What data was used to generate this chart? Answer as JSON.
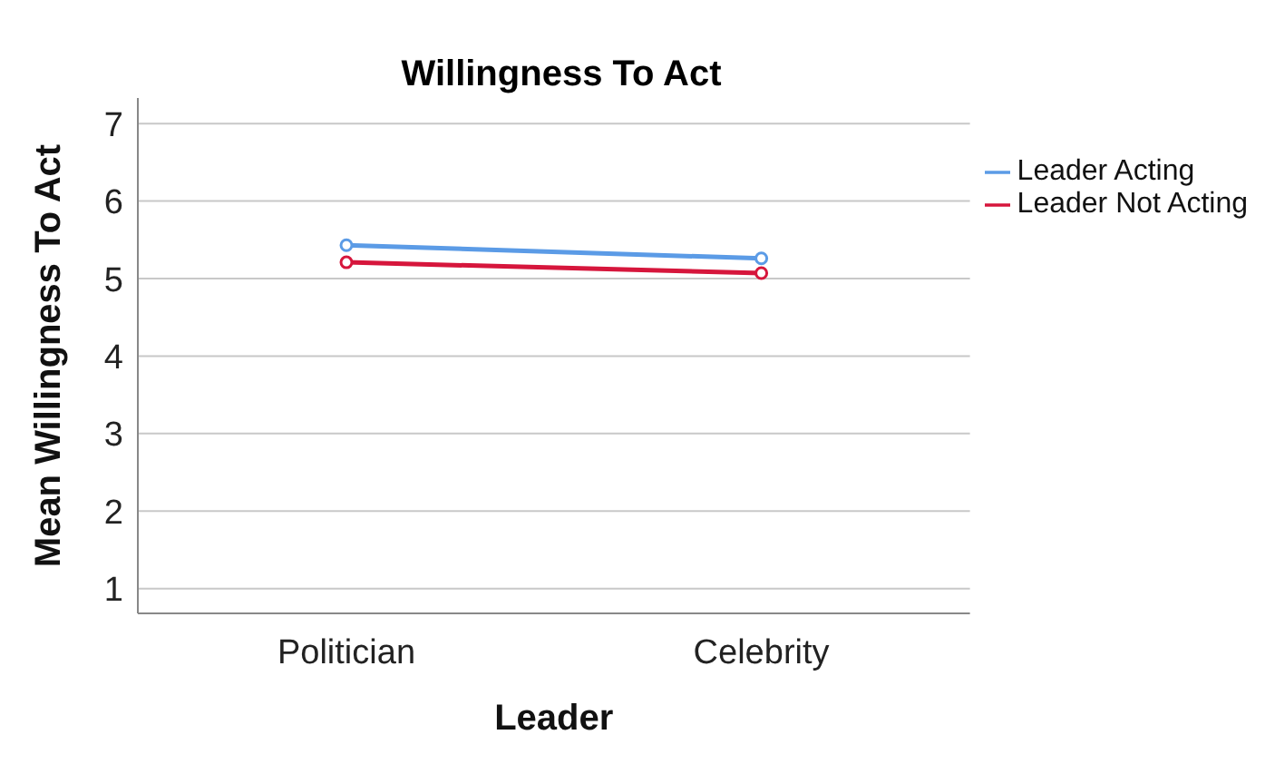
{
  "chart_data": {
    "type": "line",
    "title": "Willingness To Act",
    "xlabel": "Leader",
    "ylabel": "Mean Willingness To Act",
    "categories": [
      "Politician",
      "Celebrity"
    ],
    "series": [
      {
        "name": "Leader Acting",
        "color": "#5b9be6",
        "values": [
          5.43,
          5.26
        ]
      },
      {
        "name": "Leader Not Acting",
        "color": "#d6163c",
        "values": [
          5.21,
          5.07
        ]
      }
    ],
    "ylim": [
      0.68,
      7.33
    ],
    "yticks": [
      1,
      2,
      3,
      4,
      5,
      6,
      7
    ],
    "grid": "y",
    "legend": "top right",
    "marker": "circle",
    "line_style": "solid"
  }
}
